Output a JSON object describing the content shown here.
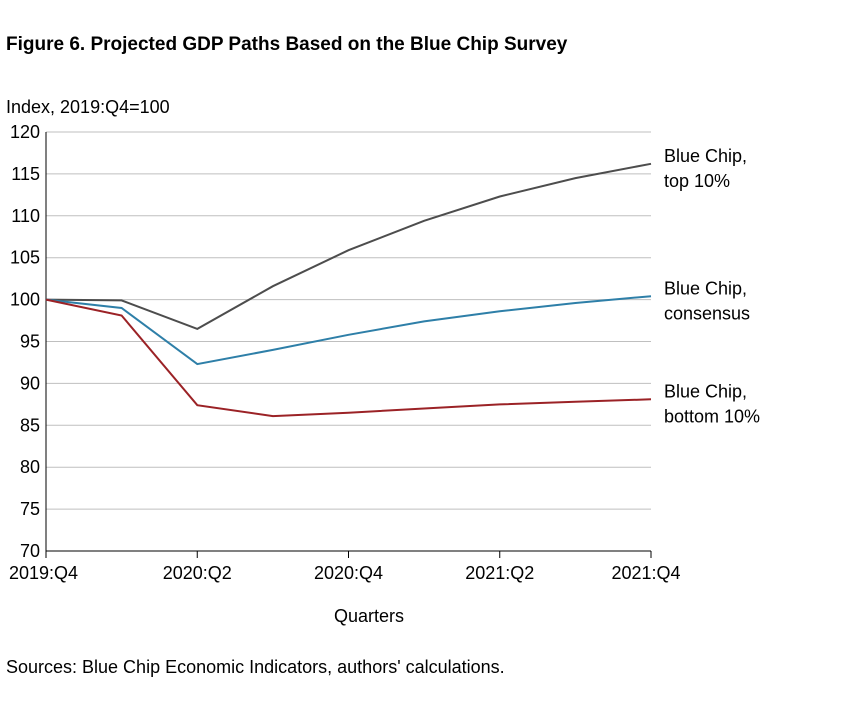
{
  "title": "Figure 6. Projected GDP Paths Based on the Blue Chip Survey",
  "source": "Sources: Blue Chip Economic Indicators, authors' calculations.",
  "chart_data": {
    "type": "line",
    "ylabel": "Index, 2019:Q4=100",
    "xlabel": "Quarters",
    "ylim": [
      70,
      120
    ],
    "yticks": [
      70,
      75,
      80,
      85,
      90,
      95,
      100,
      105,
      110,
      115,
      120
    ],
    "x": [
      "2019:Q4",
      "2020:Q1",
      "2020:Q2",
      "2020:Q3",
      "2020:Q4",
      "2021:Q1",
      "2021:Q2",
      "2021:Q3",
      "2021:Q4"
    ],
    "xtick_labels": [
      "2019:Q4",
      "2020:Q2",
      "2020:Q4",
      "2021:Q2",
      "2021:Q4"
    ],
    "grid": "horizontal",
    "series": [
      {
        "name": "Blue Chip, top 10%",
        "label_lines": [
          "Blue Chip,",
          "top 10%"
        ],
        "color": "#4d4d4d",
        "values": [
          100,
          99.9,
          96.5,
          101.6,
          105.9,
          109.4,
          112.3,
          114.5,
          116.2
        ]
      },
      {
        "name": "Blue Chip, consensus",
        "label_lines": [
          "Blue Chip,",
          "consensus"
        ],
        "color": "#2e7fa8",
        "values": [
          100,
          99.0,
          92.3,
          94.0,
          95.8,
          97.4,
          98.6,
          99.6,
          100.4
        ]
      },
      {
        "name": "Blue Chip, bottom 10%",
        "label_lines": [
          "Blue Chip,",
          "bottom 10%"
        ],
        "color": "#9b2226",
        "values": [
          100,
          98.1,
          87.4,
          86.1,
          86.5,
          87.0,
          87.5,
          87.8,
          88.1
        ]
      }
    ]
  }
}
